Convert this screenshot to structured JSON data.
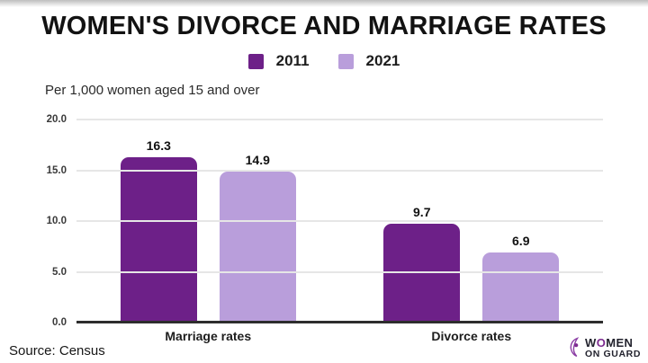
{
  "header": {
    "title": "WOMEN'S DIVORCE AND MARRIAGE RATES",
    "subtitle": "Per 1,000 women aged 15 and over"
  },
  "source": "Source: Census",
  "logo": {
    "icon": "woman-silhouette-icon",
    "word1_pre": "W",
    "word1_o": "O",
    "word1_post": "MEN",
    "line2": "ON GUARD",
    "accent_color": "#8c3fa5"
  },
  "colors": {
    "series_2011": "#6d2088",
    "series_2021": "#b99edb",
    "gridline": "#e6e6e6",
    "axis_line": "#2d2d2d",
    "text": "#121212"
  },
  "chart_data": {
    "type": "bar",
    "title": "WOMEN'S DIVORCE AND MARRIAGE RATES",
    "subtitle": "Per 1,000 women aged 15 and over",
    "categories": [
      "Marriage rates",
      "Divorce rates"
    ],
    "series": [
      {
        "name": "2011",
        "color": "#6d2088",
        "values": [
          16.3,
          9.7
        ],
        "value_labels": [
          "16.3",
          "9.7"
        ]
      },
      {
        "name": "2021",
        "color": "#b99edb",
        "values": [
          14.9,
          6.9
        ],
        "value_labels": [
          "14.9",
          "6.9"
        ]
      }
    ],
    "ylim": [
      0,
      20
    ],
    "yticks": [
      0,
      5,
      10,
      15,
      20
    ],
    "ytick_labels": [
      "0.0",
      "5.0",
      "10.0",
      "15.0",
      "20.0"
    ],
    "grid": true,
    "data_labels": true,
    "legend_position": "top-center",
    "source": "Source: Census"
  }
}
